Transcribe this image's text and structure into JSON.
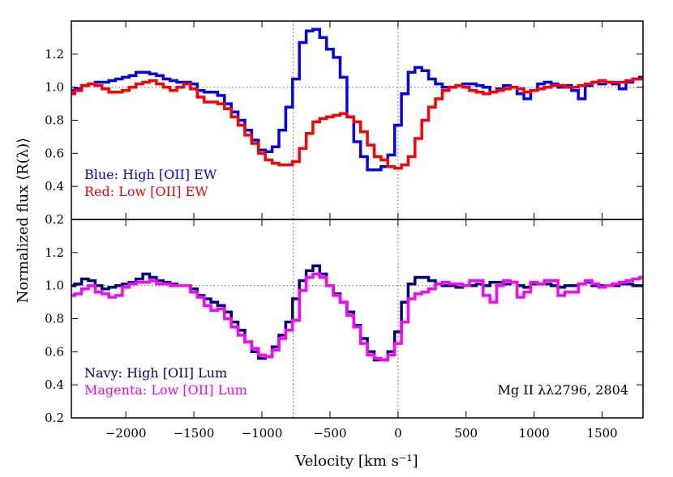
{
  "chart_data": {
    "type": "line",
    "xlabel": "Velocity [km s⁻¹]",
    "ylabel": "Normalized flux ⟨R(λ)⟩",
    "xlim": [
      -2400,
      1800
    ],
    "ylim": [
      0.2,
      1.4
    ],
    "xticks": [
      -2000,
      -1500,
      -1000,
      -500,
      0,
      500,
      1000,
      1500
    ],
    "xtick_labels": [
      "−2000",
      "−1500",
      "−1000",
      "−500",
      "0",
      "500",
      "1000",
      "1500"
    ],
    "yticks": [
      0.2,
      0.4,
      0.6,
      0.8,
      1.0,
      1.2
    ],
    "ytick_labels": [
      "0.2",
      "0.4",
      "0.6",
      "0.8",
      "1.0",
      "1.2"
    ],
    "reference_lines": {
      "y": 1.0,
      "x": [
        -770,
        0
      ]
    },
    "line_label": "Mg II λλ2796, 2804",
    "x": [
      -2400,
      -2350,
      -2300,
      -2250,
      -2200,
      -2150,
      -2100,
      -2050,
      -2000,
      -1950,
      -1900,
      -1850,
      -1800,
      -1750,
      -1700,
      -1650,
      -1600,
      -1550,
      -1500,
      -1450,
      -1400,
      -1350,
      -1300,
      -1250,
      -1200,
      -1150,
      -1100,
      -1050,
      -1000,
      -950,
      -900,
      -850,
      -800,
      -750,
      -700,
      -650,
      -600,
      -550,
      -500,
      -450,
      -400,
      -350,
      -300,
      -250,
      -200,
      -150,
      -100,
      -50,
      0,
      50,
      100,
      150,
      200,
      250,
      300,
      350,
      400,
      450,
      500,
      550,
      600,
      650,
      700,
      750,
      800,
      850,
      900,
      950,
      1000,
      1050,
      1100,
      1150,
      1200,
      1250,
      1300,
      1350,
      1400,
      1450,
      1500,
      1550,
      1600,
      1650,
      1700,
      1750,
      1800
    ],
    "panels": [
      {
        "panel": "top",
        "series": [
          {
            "name": "High [OII] EW",
            "legend": "Blue: High [OII] EW",
            "color": "#0000ff",
            "values": [
              0.98,
              0.99,
              1.01,
              1.02,
              1.03,
              1.03,
              1.04,
              1.05,
              1.06,
              1.07,
              1.09,
              1.09,
              1.08,
              1.07,
              1.05,
              1.04,
              1.03,
              1.03,
              1.02,
              0.98,
              0.97,
              0.97,
              0.95,
              0.9,
              0.85,
              0.8,
              0.74,
              0.68,
              0.62,
              0.61,
              0.64,
              0.74,
              0.88,
              1.05,
              1.27,
              1.34,
              1.35,
              1.3,
              1.23,
              1.18,
              1.06,
              0.82,
              0.67,
              0.58,
              0.5,
              0.5,
              0.52,
              0.59,
              0.77,
              0.96,
              1.09,
              1.12,
              1.1,
              1.05,
              1.02,
              1.0,
              1.0,
              1.01,
              1.02,
              1.02,
              1.01,
              1.0,
              0.97,
              0.99,
              1.01,
              1.0,
              0.96,
              0.93,
              0.98,
              1.02,
              1.03,
              1.02,
              1.0,
              1.01,
              0.98,
              0.93,
              1.01,
              1.03,
              1.02,
              1.03,
              1.02,
              0.99,
              1.03,
              1.05,
              1.06
            ]
          },
          {
            "name": "Low [OII] EW",
            "legend": "Red: Low [OII] EW",
            "color": "#ff0000",
            "values": [
              0.96,
              0.98,
              1.01,
              1.02,
              1.01,
              0.99,
              0.97,
              0.97,
              0.98,
              1.0,
              1.02,
              1.03,
              1.04,
              1.02,
              1.0,
              0.98,
              1.0,
              1.02,
              0.99,
              0.94,
              0.91,
              0.91,
              0.9,
              0.87,
              0.82,
              0.77,
              0.71,
              0.66,
              0.6,
              0.56,
              0.54,
              0.53,
              0.53,
              0.55,
              0.63,
              0.72,
              0.79,
              0.81,
              0.82,
              0.83,
              0.84,
              0.82,
              0.79,
              0.73,
              0.65,
              0.58,
              0.56,
              0.52,
              0.51,
              0.53,
              0.58,
              0.69,
              0.8,
              0.88,
              0.93,
              0.98,
              1.0,
              1.01,
              1.0,
              0.98,
              0.97,
              0.96,
              0.97,
              0.98,
              0.99,
              1.0,
              0.99,
              0.97,
              0.98,
              0.99,
              1.0,
              1.01,
              1.01,
              1.0,
              1.0,
              1.01,
              1.02,
              1.03,
              1.04,
              1.03,
              1.03,
              1.03,
              1.04,
              1.05,
              1.05
            ]
          }
        ]
      },
      {
        "panel": "bottom",
        "series": [
          {
            "name": "High [OII] Lum",
            "legend": "Navy: High [OII] Lum",
            "color": "#000080",
            "values": [
              1.0,
              1.01,
              1.04,
              1.03,
              1.0,
              0.98,
              0.99,
              1.0,
              1.01,
              1.02,
              1.04,
              1.07,
              1.05,
              1.03,
              1.02,
              1.01,
              1.0,
              1.0,
              0.98,
              0.94,
              0.92,
              0.9,
              0.88,
              0.84,
              0.78,
              0.73,
              0.66,
              0.6,
              0.56,
              0.57,
              0.63,
              0.7,
              0.78,
              0.92,
              1.03,
              1.09,
              1.12,
              1.07,
              1.0,
              0.95,
              0.9,
              0.84,
              0.76,
              0.68,
              0.6,
              0.55,
              0.55,
              0.6,
              0.72,
              0.9,
              1.01,
              1.05,
              1.05,
              1.03,
              1.01,
              1.0,
              1.0,
              0.99,
              1.0,
              1.0,
              1.01,
              1.0,
              1.02,
              1.02,
              1.01,
              1.02,
              1.0,
              0.99,
              1.01,
              1.01,
              1.01,
              1.0,
              0.99,
              1.0,
              1.0,
              1.01,
              1.02,
              1.0,
              1.0,
              1.0,
              1.0,
              1.01,
              1.01,
              1.0,
              1.0
            ]
          },
          {
            "name": "Low [OII] Lum",
            "legend": "Magenta: Low [OII] Lum",
            "color": "#ff00ff",
            "values": [
              0.94,
              0.95,
              0.98,
              1.0,
              0.96,
              0.95,
              0.93,
              0.94,
              0.99,
              1.01,
              1.02,
              1.02,
              1.03,
              1.01,
              1.01,
              1.0,
              1.0,
              1.0,
              0.96,
              0.93,
              0.88,
              0.85,
              0.86,
              0.8,
              0.75,
              0.7,
              0.66,
              0.62,
              0.58,
              0.57,
              0.61,
              0.68,
              0.73,
              0.79,
              0.97,
              1.05,
              1.07,
              1.05,
              1.0,
              0.94,
              0.9,
              0.82,
              0.75,
              0.65,
              0.58,
              0.56,
              0.55,
              0.58,
              0.65,
              0.78,
              0.92,
              0.95,
              0.96,
              0.98,
              1.01,
              1.02,
              1.01,
              1.01,
              1.0,
              1.03,
              1.03,
              0.94,
              0.9,
              1.0,
              1.03,
              1.02,
              0.93,
              0.96,
              1.02,
              1.01,
              1.03,
              1.03,
              0.94,
              0.96,
              0.96,
              1.01,
              1.03,
              1.01,
              0.99,
              1.0,
              1.01,
              1.02,
              1.03,
              1.04,
              1.05
            ]
          }
        ]
      }
    ]
  }
}
